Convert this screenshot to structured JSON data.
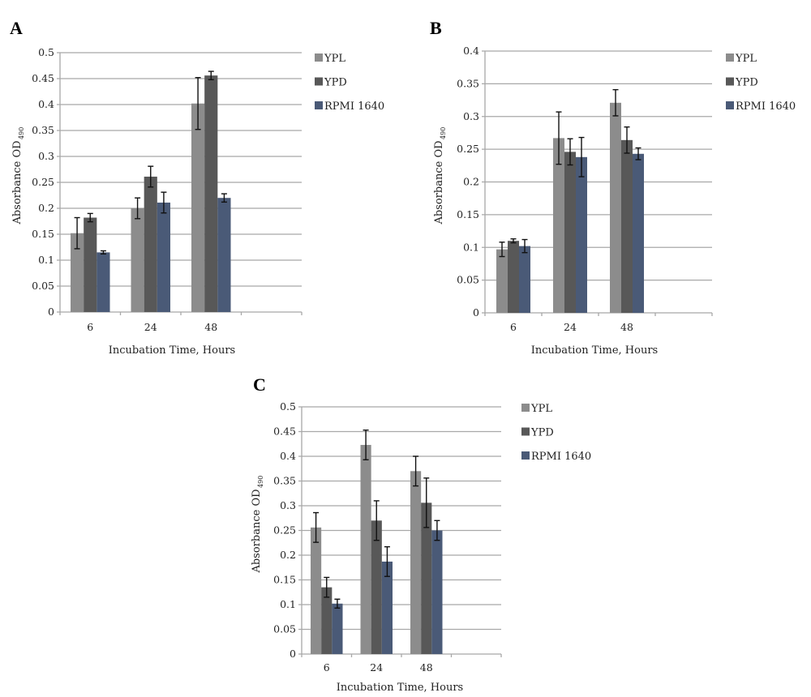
{
  "colors": {
    "YPL": "#8c8c8c",
    "YPD": "#585858",
    "RPMI 1640": "#4a5a77",
    "grid": "#a8a8a8",
    "error": "#111111"
  },
  "chart_data": [
    {
      "panel": "A",
      "type": "bar",
      "xlabel": "Incubation Time, Hours",
      "ylabel": "Absorbance OD",
      "ylabel_sub": "490",
      "categories": [
        "6",
        "24",
        "48"
      ],
      "slots": 4,
      "ylim": [
        0,
        0.5
      ],
      "yticks": [
        "0",
        "0.05",
        "0.1",
        "0.15",
        "0.2",
        "0.25",
        "0.3",
        "0.35",
        "0.4",
        "0.45",
        "0.5"
      ],
      "legend": "right",
      "series": [
        {
          "name": "YPL",
          "values": [
            0.152,
            0.2,
            0.402
          ],
          "errors": [
            0.03,
            0.02,
            0.05
          ]
        },
        {
          "name": "YPD",
          "values": [
            0.182,
            0.261,
            0.456
          ],
          "errors": [
            0.008,
            0.02,
            0.008
          ]
        },
        {
          "name": "RPMI 1640",
          "values": [
            0.115,
            0.211,
            0.22
          ],
          "errors": [
            0.003,
            0.02,
            0.008
          ]
        }
      ]
    },
    {
      "panel": "B",
      "type": "bar",
      "xlabel": "Incubation Time, Hours",
      "ylabel": "Absorbance OD",
      "ylabel_sub": "490",
      "categories": [
        "6",
        "24",
        "48"
      ],
      "slots": 4,
      "ylim": [
        0,
        0.4
      ],
      "yticks": [
        "0",
        "0.05",
        "0.1",
        "0.15",
        "0.2",
        "0.25",
        "0.3",
        "0.35",
        "0.4"
      ],
      "legend": "right",
      "series": [
        {
          "name": "YPL",
          "values": [
            0.097,
            0.267,
            0.321
          ],
          "errors": [
            0.011,
            0.04,
            0.02
          ]
        },
        {
          "name": "YPD",
          "values": [
            0.11,
            0.246,
            0.264
          ],
          "errors": [
            0.003,
            0.02,
            0.02
          ]
        },
        {
          "name": "RPMI 1640",
          "values": [
            0.102,
            0.238,
            0.243
          ],
          "errors": [
            0.01,
            0.03,
            0.009
          ]
        }
      ]
    },
    {
      "panel": "C",
      "type": "bar",
      "xlabel": "Incubation Time, Hours",
      "ylabel": "Absorbance OD",
      "ylabel_sub": "490",
      "categories": [
        "6",
        "24",
        "48"
      ],
      "slots": 4,
      "ylim": [
        0,
        0.5
      ],
      "yticks": [
        "0",
        "0.05",
        "0.1",
        "0.15",
        "0.2",
        "0.25",
        "0.3",
        "0.35",
        "0.4",
        "0.45",
        "0.5"
      ],
      "legend": "right",
      "series": [
        {
          "name": "YPL",
          "values": [
            0.256,
            0.423,
            0.37
          ],
          "errors": [
            0.03,
            0.03,
            0.03
          ]
        },
        {
          "name": "YPD",
          "values": [
            0.135,
            0.27,
            0.306
          ],
          "errors": [
            0.02,
            0.04,
            0.05
          ]
        },
        {
          "name": "RPMI 1640",
          "values": [
            0.102,
            0.187,
            0.25
          ],
          "errors": [
            0.009,
            0.03,
            0.02
          ]
        }
      ]
    }
  ]
}
